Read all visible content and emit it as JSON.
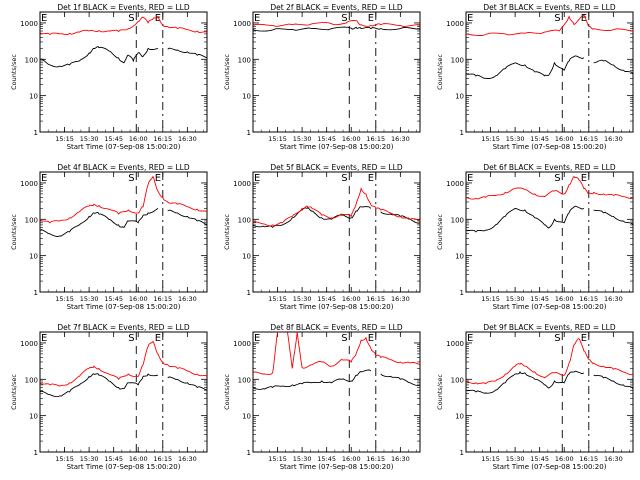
{
  "figure": {
    "panels": [
      {
        "title": "Det 1f BLACK = Events, RED = LLD"
      },
      {
        "title": "Det 2f BLACK = Events, RED = LLD"
      },
      {
        "title": "Det 3f BLACK = Events, RED = LLD"
      },
      {
        "title": "Det 4f BLACK = Events, RED = LLD"
      },
      {
        "title": "Det 5f BLACK = Events, RED = LLD"
      },
      {
        "title": "Det 6f BLACK = Events, RED = LLD"
      },
      {
        "title": "Det 7f BLACK = Events, RED = LLD"
      },
      {
        "title": "Det 8f BLACK = Events, RED = LLD"
      },
      {
        "title": "Det 9f BLACK = Events, RED = LLD"
      }
    ],
    "xlabel": "Start Time (07-Sep-08 15:00:20)",
    "ylabel": "Counts/sec",
    "xticks": [
      "15:15",
      "15:30",
      "15:45",
      "16:00",
      "16:15",
      "16:30"
    ],
    "yticks": [
      "1",
      "10",
      "100",
      "1000"
    ],
    "markers": [
      {
        "label": "E",
        "time": 15.0
      },
      {
        "label": "S",
        "time": 15.98
      },
      {
        "label": "E",
        "time": 16.25
      }
    ],
    "colors": {
      "events": "#000000",
      "lld": "#ff0000",
      "axes": "#000000"
    }
  },
  "chart_data": [
    {
      "type": "line",
      "title": "Det 1f BLACK = Events, RED = LLD",
      "xlim": [
        15.0,
        16.7
      ],
      "ylim": [
        1,
        2000
      ],
      "yscale": "log",
      "series": [
        {
          "name": "Events",
          "x": [
            15.0,
            15.1,
            15.2,
            15.3,
            15.4,
            15.5,
            15.55,
            15.6,
            15.7,
            15.8,
            15.85,
            15.9,
            15.95,
            16.0,
            16.05,
            16.1,
            16.2,
            16.25,
            16.3,
            16.4,
            16.5,
            16.6,
            16.7
          ],
          "values": [
            100,
            70,
            65,
            70,
            90,
            150,
            200,
            210,
            170,
            110,
            80,
            130,
            90,
            150,
            120,
            200,
            200,
            null,
            190,
            180,
            160,
            130,
            110
          ]
        },
        {
          "name": "LLD",
          "x": [
            15.0,
            15.1,
            15.2,
            15.3,
            15.4,
            15.5,
            15.6,
            15.7,
            15.8,
            15.9,
            16.0,
            16.05,
            16.1,
            16.15,
            16.2,
            16.25,
            16.3,
            16.4,
            16.5,
            16.6,
            16.7
          ],
          "values": [
            550,
            480,
            500,
            520,
            560,
            600,
            620,
            600,
            580,
            700,
            1100,
            1400,
            1000,
            1300,
            1500,
            900,
            800,
            700,
            650,
            600,
            550
          ]
        }
      ]
    },
    {
      "type": "line",
      "title": "Det 2f BLACK = Events, RED = LLD",
      "xlim": [
        15.0,
        16.7
      ],
      "ylim": [
        1,
        2000
      ],
      "yscale": "log",
      "series": [
        {
          "name": "Events",
          "x": [
            15.0,
            15.2,
            15.4,
            15.6,
            15.8,
            16.0,
            16.05,
            16.1,
            16.2,
            16.3,
            16.5,
            16.7
          ],
          "values": [
            650,
            640,
            660,
            700,
            700,
            720,
            760,
            700,
            700,
            700,
            700,
            680
          ]
        },
        {
          "name": "LLD",
          "x": [
            15.0,
            15.2,
            15.4,
            15.6,
            15.8,
            15.95,
            16.05,
            16.1,
            16.2,
            16.3,
            16.5,
            16.7
          ],
          "values": [
            850,
            850,
            900,
            950,
            950,
            1000,
            1150,
            900,
            850,
            900,
            850,
            850
          ]
        }
      ]
    },
    {
      "type": "line",
      "title": "Det 3f BLACK = Events, RED = LLD",
      "xlim": [
        15.0,
        16.7
      ],
      "ylim": [
        1,
        2000
      ],
      "yscale": "log",
      "series": [
        {
          "name": "Events",
          "x": [
            15.0,
            15.1,
            15.2,
            15.3,
            15.4,
            15.5,
            15.6,
            15.7,
            15.8,
            15.85,
            15.9,
            16.0,
            16.05,
            16.1,
            16.2,
            16.25,
            16.3,
            16.4,
            16.5,
            16.6,
            16.7
          ],
          "values": [
            40,
            35,
            30,
            35,
            55,
            80,
            70,
            45,
            35,
            40,
            80,
            50,
            90,
            120,
            110,
            null,
            80,
            90,
            70,
            50,
            40
          ]
        },
        {
          "name": "LLD",
          "x": [
            15.0,
            15.2,
            15.4,
            15.6,
            15.8,
            15.95,
            16.05,
            16.1,
            16.2,
            16.25,
            16.3,
            16.5,
            16.7
          ],
          "values": [
            500,
            480,
            500,
            520,
            560,
            600,
            1500,
            900,
            1600,
            800,
            700,
            650,
            600
          ]
        }
      ]
    },
    {
      "type": "line",
      "title": "Det 4f BLACK = Events, RED = LLD",
      "xlim": [
        15.0,
        16.7
      ],
      "ylim": [
        1,
        2000
      ],
      "yscale": "log",
      "series": [
        {
          "name": "Events",
          "x": [
            15.0,
            15.1,
            15.2,
            15.3,
            15.4,
            15.5,
            15.55,
            15.6,
            15.7,
            15.8,
            15.85,
            15.9,
            16.0,
            16.05,
            16.1,
            16.2,
            16.25,
            16.3,
            16.4,
            16.5,
            16.6,
            16.7
          ],
          "values": [
            50,
            40,
            35,
            45,
            70,
            120,
            150,
            140,
            100,
            70,
            60,
            90,
            80,
            130,
            150,
            200,
            null,
            170,
            150,
            120,
            90,
            70
          ]
        },
        {
          "name": "LLD",
          "x": [
            15.0,
            15.1,
            15.2,
            15.3,
            15.4,
            15.5,
            15.55,
            15.6,
            15.7,
            15.8,
            15.9,
            16.0,
            16.05,
            16.1,
            16.15,
            16.2,
            16.25,
            16.3,
            16.4,
            16.5,
            16.6,
            16.7
          ],
          "values": [
            100,
            80,
            90,
            110,
            160,
            230,
            260,
            240,
            190,
            140,
            180,
            150,
            220,
            900,
            1500,
            600,
            400,
            300,
            260,
            220,
            190,
            160
          ]
        }
      ]
    },
    {
      "type": "line",
      "title": "Det 5f BLACK = Events, RED = LLD",
      "xlim": [
        15.0,
        16.7
      ],
      "ylim": [
        1,
        2000
      ],
      "yscale": "log",
      "series": [
        {
          "name": "Events",
          "x": [
            15.0,
            15.1,
            15.2,
            15.3,
            15.4,
            15.5,
            15.55,
            15.6,
            15.7,
            15.8,
            15.9,
            16.0,
            16.05,
            16.1,
            16.2,
            16.25,
            16.3,
            16.4,
            16.5,
            16.6,
            16.7
          ],
          "values": [
            70,
            65,
            60,
            70,
            110,
            180,
            200,
            170,
            110,
            100,
            130,
            110,
            170,
            220,
            200,
            null,
            160,
            140,
            120,
            100,
            80
          ]
        },
        {
          "name": "LLD",
          "x": [
            15.0,
            15.1,
            15.2,
            15.3,
            15.4,
            15.5,
            15.55,
            15.6,
            15.7,
            15.8,
            15.9,
            16.0,
            16.05,
            16.1,
            16.15,
            16.2,
            16.25,
            16.3,
            16.4,
            16.5,
            16.6,
            16.7
          ],
          "values": [
            80,
            75,
            70,
            80,
            120,
            200,
            230,
            200,
            130,
            110,
            140,
            120,
            260,
            700,
            500,
            250,
            200,
            180,
            150,
            120,
            100,
            90
          ]
        }
      ]
    },
    {
      "type": "line",
      "title": "Det 6f BLACK = Events, RED = LLD",
      "xlim": [
        15.0,
        16.7
      ],
      "ylim": [
        1,
        2000
      ],
      "yscale": "log",
      "series": [
        {
          "name": "Events",
          "x": [
            15.0,
            15.1,
            15.2,
            15.3,
            15.4,
            15.5,
            15.6,
            15.7,
            15.8,
            15.85,
            15.9,
            16.0,
            16.05,
            16.1,
            16.2,
            16.25,
            16.3,
            16.4,
            16.5,
            16.6,
            16.7
          ],
          "values": [
            50,
            45,
            50,
            70,
            120,
            200,
            180,
            110,
            70,
            60,
            100,
            80,
            150,
            220,
            200,
            null,
            180,
            150,
            120,
            90,
            70
          ]
        },
        {
          "name": "LLD",
          "x": [
            15.0,
            15.1,
            15.2,
            15.3,
            15.4,
            15.5,
            15.6,
            15.7,
            15.8,
            15.9,
            16.0,
            16.05,
            16.1,
            16.15,
            16.2,
            16.25,
            16.3,
            16.4,
            16.5,
            16.6,
            16.7
          ],
          "values": [
            400,
            380,
            400,
            450,
            550,
            700,
            650,
            500,
            420,
            600,
            500,
            900,
            1500,
            1200,
            700,
            500,
            550,
            500,
            450,
            420,
            400
          ]
        }
      ]
    },
    {
      "type": "line",
      "title": "Det 7f BLACK = Events, RED = LLD",
      "xlim": [
        15.0,
        16.7
      ],
      "ylim": [
        1,
        2000
      ],
      "yscale": "log",
      "series": [
        {
          "name": "Events",
          "x": [
            15.0,
            15.1,
            15.2,
            15.3,
            15.4,
            15.5,
            15.55,
            15.6,
            15.7,
            15.8,
            15.85,
            15.9,
            16.0,
            16.05,
            16.1,
            16.2,
            16.25,
            16.3,
            16.4,
            16.5,
            16.6,
            16.7
          ],
          "values": [
            45,
            38,
            35,
            45,
            70,
            120,
            140,
            130,
            90,
            60,
            55,
            80,
            70,
            120,
            140,
            130,
            null,
            110,
            100,
            80,
            60,
            50
          ]
        },
        {
          "name": "LLD",
          "x": [
            15.0,
            15.1,
            15.2,
            15.3,
            15.4,
            15.5,
            15.55,
            15.6,
            15.7,
            15.8,
            15.9,
            16.0,
            16.05,
            16.1,
            16.15,
            16.2,
            16.25,
            16.3,
            16.4,
            16.5,
            16.6,
            16.7
          ],
          "values": [
            80,
            70,
            65,
            80,
            120,
            200,
            230,
            200,
            140,
            100,
            140,
            120,
            250,
            800,
            1100,
            500,
            300,
            250,
            200,
            170,
            140,
            120
          ]
        }
      ]
    },
    {
      "type": "line",
      "title": "Det 8f BLACK = Events, RED = LLD",
      "xlim": [
        15.0,
        16.7
      ],
      "ylim": [
        1,
        2000
      ],
      "yscale": "log",
      "series": [
        {
          "name": "Events",
          "x": [
            15.0,
            15.1,
            15.2,
            15.3,
            15.4,
            15.5,
            15.6,
            15.7,
            15.8,
            15.9,
            16.0,
            16.05,
            16.1,
            16.2,
            16.25,
            16.3,
            16.4,
            16.5,
            16.6,
            16.7
          ],
          "values": [
            60,
            55,
            60,
            65,
            70,
            75,
            80,
            90,
            80,
            100,
            90,
            130,
            160,
            170,
            null,
            140,
            120,
            100,
            80,
            70
          ]
        },
        {
          "name": "LLD",
          "x": [
            15.0,
            15.1,
            15.2,
            15.25,
            15.3,
            15.35,
            15.4,
            15.45,
            15.5,
            15.6,
            15.7,
            15.8,
            15.9,
            16.0,
            16.05,
            16.1,
            16.15,
            16.2,
            16.25,
            16.3,
            16.4,
            16.5,
            16.6,
            16.7
          ],
          "values": [
            150,
            140,
            150,
            2000,
            2000,
            2000,
            200,
            2000,
            210,
            250,
            300,
            230,
            350,
            300,
            500,
            1200,
            1400,
            700,
            450,
            400,
            350,
            300,
            280,
            250
          ]
        }
      ]
    },
    {
      "type": "line",
      "title": "Det 9f BLACK = Events, RED = LLD",
      "xlim": [
        15.0,
        16.7
      ],
      "ylim": [
        1,
        2000
      ],
      "yscale": "log",
      "series": [
        {
          "name": "Events",
          "x": [
            15.0,
            15.1,
            15.2,
            15.3,
            15.4,
            15.5,
            15.55,
            15.6,
            15.7,
            15.8,
            15.85,
            15.9,
            16.0,
            16.05,
            16.1,
            16.2,
            16.25,
            16.3,
            16.4,
            16.5,
            16.6,
            16.7
          ],
          "values": [
            50,
            45,
            42,
            50,
            80,
            140,
            160,
            150,
            100,
            70,
            60,
            90,
            80,
            140,
            160,
            150,
            null,
            130,
            110,
            90,
            70,
            55
          ]
        },
        {
          "name": "LLD",
          "x": [
            15.0,
            15.1,
            15.2,
            15.3,
            15.4,
            15.5,
            15.55,
            15.6,
            15.7,
            15.8,
            15.9,
            16.0,
            16.05,
            16.1,
            16.15,
            16.2,
            16.25,
            16.3,
            16.4,
            16.5,
            16.6,
            16.7
          ],
          "values": [
            90,
            80,
            75,
            90,
            140,
            230,
            260,
            230,
            160,
            110,
            150,
            130,
            280,
            900,
            1300,
            600,
            350,
            280,
            230,
            190,
            160,
            140
          ]
        }
      ]
    }
  ]
}
